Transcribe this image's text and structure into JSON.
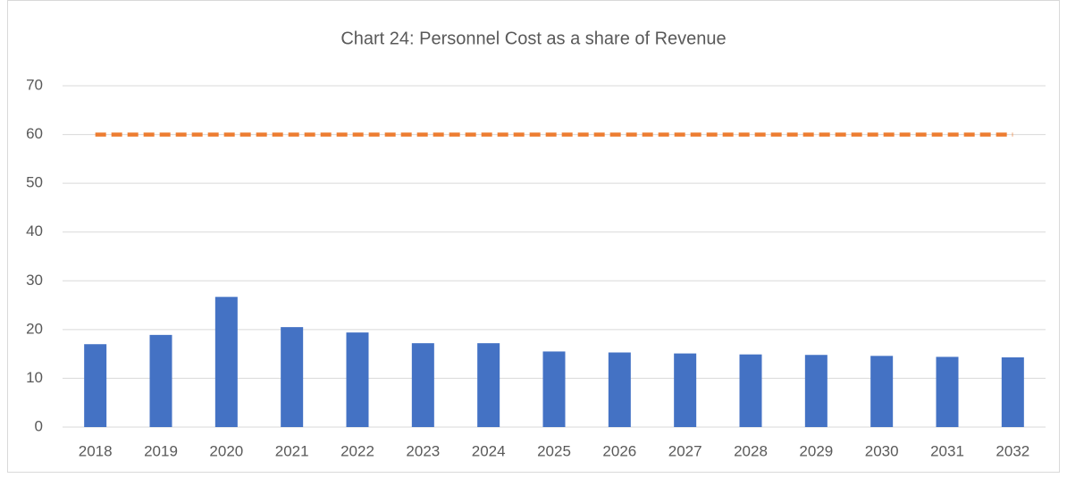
{
  "chart_data": {
    "type": "bar",
    "title": "Chart 24: Personnel Cost as a share of Revenue",
    "categories": [
      "2018",
      "2019",
      "2020",
      "2021",
      "2022",
      "2023",
      "2024",
      "2025",
      "2026",
      "2027",
      "2028",
      "2029",
      "2030",
      "2031",
      "2032"
    ],
    "series": [
      {
        "color": "#4472c4",
        "values": [
          17.0,
          18.9,
          26.7,
          20.5,
          19.4,
          17.2,
          17.2,
          15.5,
          15.3,
          15.1,
          14.9,
          14.8,
          14.6,
          14.4,
          14.3
        ]
      },
      {
        "color": "#ed7d31",
        "type": "line",
        "dashed": true,
        "values": [
          60,
          60,
          60,
          60,
          60,
          60,
          60,
          60,
          60,
          60,
          60,
          60,
          60,
          60,
          60
        ]
      }
    ],
    "ylim": [
      0,
      70
    ],
    "yticks": [
      0,
      10,
      20,
      30,
      40,
      50,
      60,
      70
    ],
    "grid": true
  }
}
